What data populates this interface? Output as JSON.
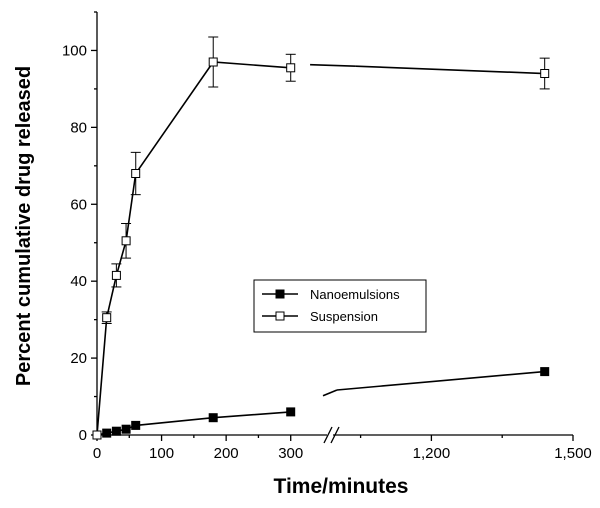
{
  "chart_data": {
    "type": "line",
    "title": "",
    "xlabel": "Time/minutes",
    "ylabel": "Percent cumulative drug released",
    "axis_break": true,
    "x_segments": [
      {
        "range": [
          0,
          350
        ],
        "ticks": [
          0,
          100,
          200,
          300
        ],
        "tick_labels": [
          "0",
          "100",
          "200",
          "300"
        ]
      },
      {
        "range": [
          1000,
          1500
        ],
        "ticks": [
          1200,
          1500
        ],
        "tick_labels": [
          "1,200",
          "1,500"
        ]
      }
    ],
    "ylim": [
      0,
      110
    ],
    "y_ticks": [
      0,
      20,
      40,
      60,
      80,
      100
    ],
    "y_tick_labels": [
      "0",
      "20",
      "40",
      "60",
      "80",
      "100"
    ],
    "legend_position": "center-right",
    "grid": false,
    "series": [
      {
        "name": "Nanoemulsions",
        "marker": "filled-square",
        "color": "#000000",
        "x": [
          0,
          15,
          30,
          45,
          60,
          180,
          300,
          1440
        ],
        "y": [
          0,
          0.5,
          1,
          1.5,
          2.5,
          4.5,
          6,
          16.5
        ],
        "err": [
          0,
          0,
          0,
          0,
          0,
          0,
          0,
          0
        ]
      },
      {
        "name": "Suspension",
        "marker": "open-square",
        "color": "#000000",
        "x": [
          0,
          15,
          30,
          45,
          60,
          180,
          300,
          1440
        ],
        "y": [
          0,
          30.5,
          41.5,
          50.5,
          68,
          97,
          95.5,
          94
        ],
        "err": [
          0,
          1.5,
          3,
          4.5,
          5.5,
          6.5,
          3.5,
          4
        ]
      }
    ],
    "gap_segments": [
      {
        "series": "Nanoemulsions",
        "from": [
          350,
          10.2
        ],
        "to": [
          1000,
          11.7
        ]
      },
      {
        "series": "Suspension",
        "from": [
          330,
          96.3
        ],
        "to": [
          1040,
          95.9
        ]
      }
    ]
  }
}
